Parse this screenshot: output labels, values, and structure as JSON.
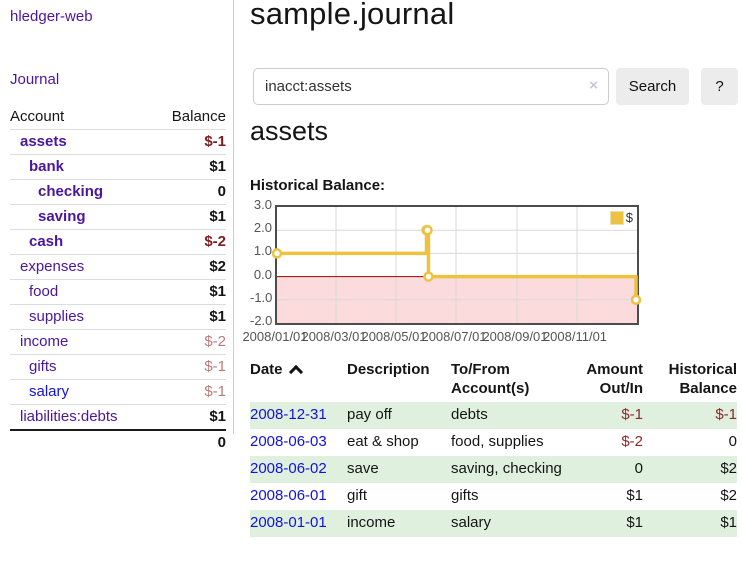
{
  "brand": "hledger-web",
  "sidebar": {
    "journal_link": "Journal",
    "col_account": "Account",
    "col_balance": "Balance",
    "accounts": [
      {
        "name": "assets",
        "level": 1,
        "balance": "$-1",
        "name_style": "purple-bold",
        "balance_style": "neg-strong"
      },
      {
        "name": "bank",
        "level": 2,
        "balance": "$1",
        "name_style": "purple-bold",
        "balance_style": "pos"
      },
      {
        "name": "checking",
        "level": 3,
        "balance": "0",
        "name_style": "purple-bold",
        "balance_style": "pos"
      },
      {
        "name": "saving",
        "level": 3,
        "balance": "$1",
        "name_style": "purple-bold",
        "balance_style": "pos"
      },
      {
        "name": "cash",
        "level": 2,
        "balance": "$-2",
        "name_style": "purple-bold",
        "balance_style": "neg-strong"
      },
      {
        "name": "expenses",
        "level": 1,
        "balance": "$2",
        "name_style": "purple",
        "balance_style": "pos"
      },
      {
        "name": "food",
        "level": 2,
        "balance": "$1",
        "name_style": "purple",
        "balance_style": "pos"
      },
      {
        "name": "supplies",
        "level": 2,
        "balance": "$1",
        "name_style": "purple",
        "balance_style": "pos"
      },
      {
        "name": "income",
        "level": 1,
        "balance": "$-2",
        "name_style": "purple",
        "balance_style": "neg-soft"
      },
      {
        "name": "gifts",
        "level": 2,
        "balance": "$-1",
        "name_style": "purple",
        "balance_style": "neg-soft"
      },
      {
        "name": "salary",
        "level": 2,
        "balance": "$-1",
        "name_style": "blue",
        "balance_style": "neg-soft"
      },
      {
        "name": "liabilities:debts",
        "level": 1,
        "balance": "$1",
        "name_style": "purple",
        "balance_style": "pos"
      }
    ],
    "total": "0"
  },
  "main": {
    "title": "sample.journal",
    "search": {
      "value": "inacct:assets",
      "clear_icon": "×",
      "search_button": "Search",
      "help_button": "?"
    },
    "heading": "assets",
    "chart_title": "Historical Balance:"
  },
  "chart_data": {
    "type": "line",
    "style": "step",
    "title": "Historical Balance",
    "series": [
      {
        "name": "$",
        "color": "#edc240",
        "points": [
          [
            "2008-01-01",
            1
          ],
          [
            "2008-06-01",
            2
          ],
          [
            "2008-06-02",
            2
          ],
          [
            "2008-06-03",
            0
          ],
          [
            "2008-12-31",
            -1
          ]
        ]
      }
    ],
    "x_domain": [
      "2008-01-01",
      "2009-01-01"
    ],
    "x_ticks": [
      "2008/01/01",
      "2008/03/01",
      "2008/05/01",
      "2008/07/01",
      "2008/09/01",
      "2008/11/01"
    ],
    "y_ticks": [
      3.0,
      2.0,
      1.0,
      0.0,
      -1.0,
      -2.0
    ],
    "ylim": [
      -2,
      3
    ],
    "grid": true,
    "legend": {
      "label": "$",
      "position": "top-right"
    },
    "colors": {
      "grid": "#d9d9d9",
      "zero_line": "#990000",
      "negative_zone": "#fbdbdb",
      "marker_fill": "#ffffff"
    }
  },
  "register": {
    "headers": {
      "date": "Date",
      "description": "Description",
      "accounts": "To/From Account(s)",
      "amount": "Amount Out/In",
      "balance": "Historical Balance"
    },
    "sort": {
      "column": "date",
      "direction": "ascending"
    },
    "rows": [
      {
        "date": "2008-12-31",
        "description": "pay off",
        "accounts": "debts",
        "amount": "$-1",
        "balance": "$-1",
        "amount_tone": "negative",
        "balance_tone": "negative",
        "shaded": true
      },
      {
        "date": "2008-06-03",
        "description": "eat & shop",
        "accounts": "food, supplies",
        "amount": "$-2",
        "balance": "0",
        "amount_tone": "negative",
        "balance_tone": "zero",
        "shaded": false
      },
      {
        "date": "2008-06-02",
        "description": "save",
        "accounts": "saving, checking",
        "amount": "0",
        "balance": "$2",
        "amount_tone": "zero",
        "balance_tone": "positive",
        "shaded": true
      },
      {
        "date": "2008-06-01",
        "description": "gift",
        "accounts": "gifts",
        "amount": "$1",
        "balance": "$2",
        "amount_tone": "positive",
        "balance_tone": "positive",
        "shaded": false
      },
      {
        "date": "2008-01-01",
        "description": "income",
        "accounts": "salary",
        "amount": "$1",
        "balance": "$1",
        "amount_tone": "positive",
        "balance_tone": "positive",
        "shaded": true
      }
    ]
  }
}
